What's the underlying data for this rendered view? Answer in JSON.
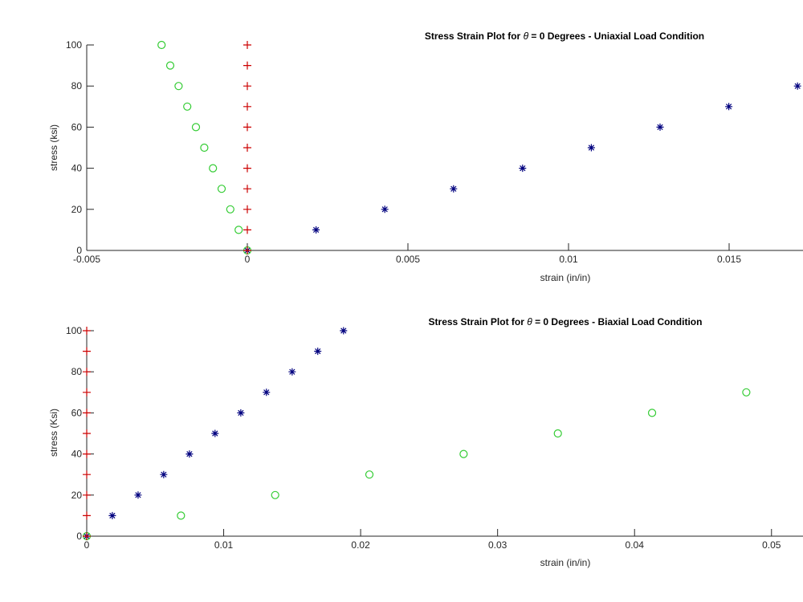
{
  "chart_data": [
    {
      "type": "scatter",
      "title_prefix": "Stress Strain Plot for ",
      "title_symbol": "θ",
      "title_suffix": " = 0 Degrees - Uniaxial Load Condition",
      "xlabel": "strain (in/in)",
      "ylabel": "stress (ksi)",
      "xlim": [
        -0.005,
        0.0173
      ],
      "ylim": [
        0,
        100
      ],
      "xticks": [
        -0.005,
        0,
        0.005,
        0.01,
        0.015
      ],
      "xtick_labels": [
        "-0.005",
        "0",
        "0.005",
        "0.01",
        "0.015"
      ],
      "yticks": [
        0,
        20,
        40,
        60,
        80,
        100
      ],
      "ytick_labels": [
        "0",
        "20",
        "40",
        "60",
        "80",
        "100"
      ],
      "grid": false,
      "series": [
        {
          "marker": "asterisk",
          "color": "#00007f",
          "x": [
            0,
            0.00214,
            0.00428,
            0.00642,
            0.00857,
            0.01071,
            0.01285,
            0.01499,
            0.01713
          ],
          "y": [
            0,
            10,
            20,
            30,
            40,
            50,
            60,
            70,
            80
          ]
        },
        {
          "marker": "circle",
          "color": "#33cc33",
          "x": [
            0,
            -0.00027,
            -0.00053,
            -0.0008,
            -0.00107,
            -0.00134,
            -0.0016,
            -0.00187,
            -0.00214,
            -0.0024,
            -0.00267
          ],
          "y": [
            0,
            10,
            20,
            30,
            40,
            50,
            60,
            70,
            80,
            90,
            100
          ]
        },
        {
          "marker": "plus",
          "color": "#cc0000",
          "x": [
            0,
            0,
            0,
            0,
            0,
            0,
            0,
            0,
            0,
            0,
            0
          ],
          "y": [
            0,
            10,
            20,
            30,
            40,
            50,
            60,
            70,
            80,
            90,
            100
          ]
        }
      ]
    },
    {
      "type": "scatter",
      "title_prefix": "Stress Strain Plot for ",
      "title_symbol": "θ",
      "title_suffix": " = 0 Degrees - Biaxial Load Condition",
      "xlabel": "strain (in/in)",
      "ylabel": "stress (Ksi)",
      "xlim": [
        0,
        0.0523
      ],
      "ylim": [
        0,
        100
      ],
      "xticks": [
        0,
        0.01,
        0.02,
        0.03,
        0.04,
        0.05
      ],
      "xtick_labels": [
        "0",
        "0.01",
        "0.02",
        "0.03",
        "0.04",
        "0.05"
      ],
      "yticks": [
        0,
        20,
        40,
        60,
        80,
        100
      ],
      "ytick_labels": [
        "0",
        "20",
        "40",
        "60",
        "80",
        "100"
      ],
      "grid": false,
      "series": [
        {
          "marker": "asterisk",
          "color": "#00007f",
          "x": [
            0,
            0.00187,
            0.00375,
            0.00562,
            0.0075,
            0.00937,
            0.01125,
            0.01312,
            0.015,
            0.01687,
            0.01875
          ],
          "y": [
            0,
            10,
            20,
            30,
            40,
            50,
            60,
            70,
            80,
            90,
            100
          ]
        },
        {
          "marker": "circle",
          "color": "#33cc33",
          "x": [
            0,
            0.00688,
            0.01376,
            0.02064,
            0.02752,
            0.0344,
            0.04128,
            0.04816
          ],
          "y": [
            0,
            10,
            20,
            30,
            40,
            50,
            60,
            70
          ]
        },
        {
          "marker": "plus",
          "color": "#cc0000",
          "x": [
            0,
            0,
            0,
            0,
            0,
            0,
            0,
            0,
            0,
            0,
            0
          ],
          "y": [
            0,
            10,
            20,
            30,
            40,
            50,
            60,
            70,
            80,
            90,
            100
          ]
        }
      ]
    }
  ]
}
